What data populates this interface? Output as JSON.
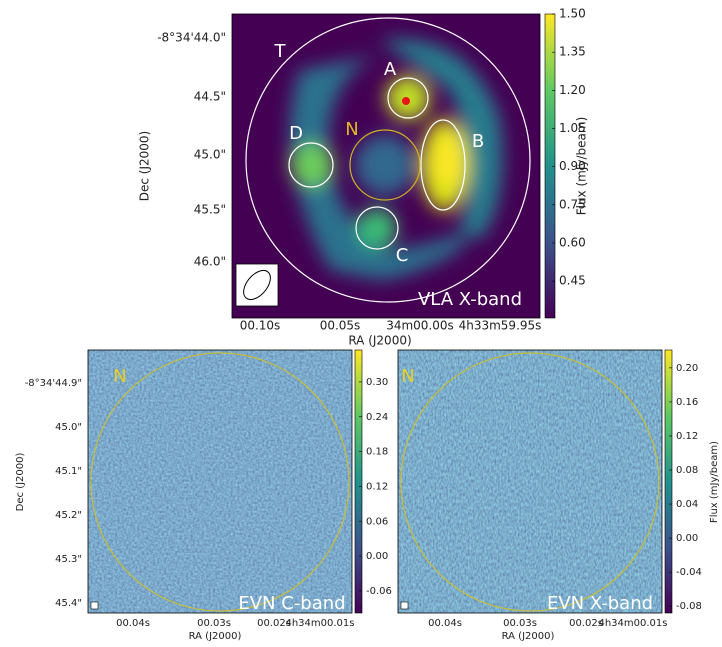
{
  "chart_data": [
    {
      "type": "heatmap",
      "annotation": "VLA X-band",
      "x_label": "RA (J2000)",
      "y_label": "Dec (J2000)",
      "colorbar_label": "Flux (mJy/beam)",
      "xtick_labels": [
        "00.10s",
        "00.05s",
        "34m00.00s",
        "4h33m59.95s"
      ],
      "ytick_labels": [
        "-8°34'44.0\"",
        "44.5\"",
        "45.0\"",
        "45.5\"",
        "46.0\""
      ],
      "clim": [
        0.305,
        1.5
      ],
      "cticks": [
        0.45,
        {
          "value": 0.6,
          "label": "0.60"
        },
        0.75,
        {
          "value": 0.9,
          "label": "0.90"
        },
        1.05,
        {
          "value": 1.2,
          "label": "1.20"
        },
        1.35,
        {
          "value": 1.5,
          "label": "1.50"
        }
      ],
      "colormap": "viridis",
      "regions": [
        "T",
        "A",
        "B",
        "C",
        "D",
        "N"
      ]
    },
    {
      "type": "heatmap",
      "annotation": "EVN C-band",
      "x_label": "RA (J2000)",
      "y_label": "Dec (J2000)",
      "xtick_labels": [
        "00.04s",
        "00.03s",
        "00.02s",
        "4h34m00.01s"
      ],
      "ytick_labels": [
        "-8°34'44.9\"",
        "45.0\"",
        "45.1\"",
        "45.2\"",
        "45.3\"",
        "45.4\""
      ],
      "clim": [
        -0.098,
        0.355
      ],
      "cticks": [
        {
          "value": 0.3,
          "label": "0.30"
        },
        0.24,
        0.18,
        0.12,
        0.06,
        {
          "value": 0,
          "label": "0.00"
        },
        {
          "value": -0.06,
          "label": "-0.06"
        }
      ],
      "colormap": "viridis",
      "regions": [
        "N"
      ]
    },
    {
      "type": "heatmap",
      "annotation": "EVN X-band",
      "x_label": "RA (J2000)",
      "colorbar_label": "Flux (mJy/beam)",
      "xtick_labels": [
        "00.04s",
        "00.03s",
        "00.02s",
        "4h34m00.01s"
      ],
      "clim": [
        -0.088,
        0.221
      ],
      "cticks": [
        {
          "value": 0.2,
          "label": "0.20"
        },
        0.16,
        0.12,
        0.08,
        0.04,
        {
          "value": 0,
          "label": "0.00"
        },
        -0.04,
        -0.08
      ],
      "colormap": "viridis",
      "regions": [
        "N"
      ]
    }
  ]
}
